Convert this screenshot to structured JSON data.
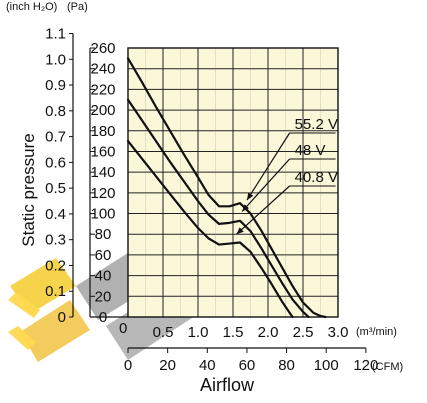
{
  "chart_data": {
    "type": "line",
    "xlabel": "Airflow",
    "ylabel": "Static pressure",
    "primary_x_unit": "(m³/min)",
    "secondary_x_unit": "(CFM)",
    "primary_y_unit": "(Pa)",
    "secondary_y_unit": "(inch H₂O)",
    "xlim": [
      0,
      3.0
    ],
    "ylim": [
      0,
      260
    ],
    "x_ticks": [
      "0.5",
      "1.0",
      "1.5",
      "2.0",
      "2.5",
      "3.0"
    ],
    "x_tick_values": [
      0.5,
      1.0,
      1.5,
      2.0,
      2.5,
      3.0
    ],
    "y_ticks": [
      "0",
      "20",
      "40",
      "60",
      "80",
      "100",
      "120",
      "140",
      "160",
      "180",
      "200",
      "220",
      "240",
      "260"
    ],
    "y_tick_values": [
      0,
      20,
      40,
      60,
      80,
      100,
      120,
      140,
      160,
      180,
      200,
      220,
      240,
      260
    ],
    "secondary_x_ticks": [
      "0",
      "20",
      "40",
      "60",
      "80",
      "100",
      "120"
    ],
    "secondary_x_tick_values": [
      0,
      20,
      40,
      60,
      80,
      100,
      120
    ],
    "secondary_x_factor": 35.3147,
    "secondary_y_ticks": [
      "0",
      "0.1",
      "0.2",
      "0.3",
      "0.4",
      "0.5",
      "0.6",
      "0.7",
      "0.8",
      "0.9",
      "1.0",
      "1.1"
    ],
    "secondary_y_tick_values": [
      0,
      0.1,
      0.2,
      0.3,
      0.4,
      0.5,
      0.6,
      0.7,
      0.8,
      0.9,
      1.0,
      1.1
    ],
    "secondary_y_factor": 249.089,
    "grid": true,
    "background_color": "#fbf7d9",
    "series": [
      {
        "name": "55.2 V",
        "label_x": 2.38,
        "arrow_to": {
          "x": 1.7,
          "y": 113
        },
        "x": [
          0,
          0.2,
          0.4,
          0.6,
          0.8,
          1.0,
          1.15,
          1.3,
          1.45,
          1.6,
          1.75,
          1.9,
          2.05,
          2.2,
          2.35,
          2.5,
          2.65,
          2.75,
          2.82
        ],
        "y": [
          250,
          227,
          203,
          180,
          157,
          135,
          118,
          107,
          107,
          110,
          100,
          84,
          66,
          48,
          30,
          14,
          4,
          1,
          0
        ]
      },
      {
        "name": "48 V",
        "label_x": 2.38,
        "arrow_to": {
          "x": 1.63,
          "y": 102
        },
        "x": [
          0,
          0.2,
          0.4,
          0.6,
          0.8,
          1.0,
          1.15,
          1.3,
          1.45,
          1.6,
          1.75,
          1.9,
          2.05,
          2.2,
          2.35,
          2.5,
          2.58
        ],
        "y": [
          210,
          190,
          170,
          150,
          131,
          112,
          99,
          90,
          91,
          93,
          83,
          67,
          50,
          33,
          17,
          5,
          0
        ]
      },
      {
        "name": "40.8 V",
        "label_x": 2.38,
        "arrow_to": {
          "x": 1.55,
          "y": 80
        },
        "x": [
          0,
          0.2,
          0.4,
          0.6,
          0.8,
          1.0,
          1.15,
          1.3,
          1.45,
          1.6,
          1.75,
          1.9,
          2.05,
          2.2,
          2.3,
          2.35
        ],
        "y": [
          170,
          153,
          136,
          119,
          102,
          86,
          76,
          70,
          71,
          72,
          63,
          48,
          32,
          15,
          5,
          0
        ]
      }
    ]
  }
}
